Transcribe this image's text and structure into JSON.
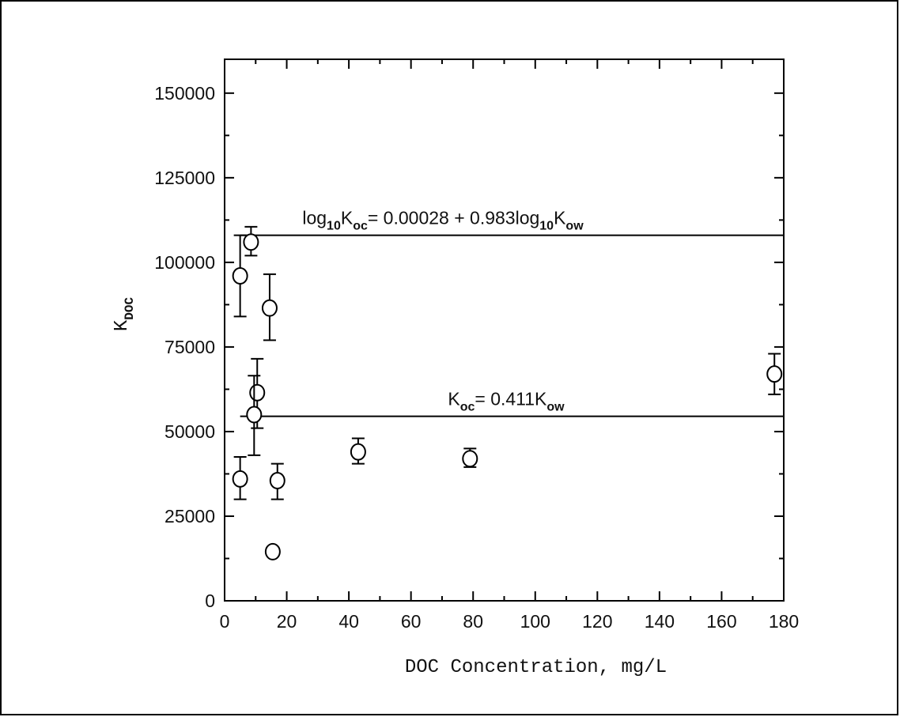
{
  "chart_data": {
    "type": "scatter",
    "xlabel": "DOC Concentration, mg/L",
    "ylabel": {
      "main": "K",
      "sub": "DOC"
    },
    "xlim": [
      0,
      180
    ],
    "ylim": [
      0,
      160000
    ],
    "xticks": [
      0,
      20,
      40,
      60,
      80,
      100,
      120,
      140,
      160,
      180
    ],
    "xtick_labels": [
      "0",
      "20",
      "40",
      "60",
      "80",
      "100",
      "120",
      "140",
      "160",
      "180"
    ],
    "yticks": [
      0,
      25000,
      50000,
      75000,
      100000,
      125000,
      150000
    ],
    "ytick_labels": [
      "0",
      "25000",
      "50000",
      "75000",
      "100000",
      "125000",
      "150000"
    ],
    "points": [
      {
        "x": 5,
        "y": 96000,
        "err_low": 84000,
        "err_high": 108000
      },
      {
        "x": 8.5,
        "y": 106000,
        "err_low": 102000,
        "err_high": 110500
      },
      {
        "x": 14.5,
        "y": 86500,
        "err_low": 77000,
        "err_high": 96500
      },
      {
        "x": 10.5,
        "y": 61500,
        "err_low": 51000,
        "err_high": 71500
      },
      {
        "x": 9.5,
        "y": 55000,
        "err_low": 43000,
        "err_high": 66500
      },
      {
        "x": 5,
        "y": 36000,
        "err_low": 30000,
        "err_high": 42500
      },
      {
        "x": 17,
        "y": 35500,
        "err_low": 30000,
        "err_high": 40500
      },
      {
        "x": 15.5,
        "y": 14500,
        "err_low": null,
        "err_high": null
      },
      {
        "x": 43,
        "y": 44000,
        "err_low": 40500,
        "err_high": 48000
      },
      {
        "x": 79,
        "y": 42000,
        "err_low": 39500,
        "err_high": 45000
      },
      {
        "x": 177,
        "y": 67000,
        "err_low": 61000,
        "err_high": 73000
      }
    ],
    "reference_lines": [
      {
        "y": 108000,
        "x_start": 5,
        "x_end": 180,
        "label_parts": [
          {
            "t": "log",
            "sub": false
          },
          {
            "t": "10",
            "sub": true
          },
          {
            "t": "K",
            "sub": false
          },
          {
            "t": "oc",
            "sub": true
          },
          {
            "t": "= 0.00028 + 0.983log",
            "sub": false
          },
          {
            "t": "10",
            "sub": true
          },
          {
            "t": "K",
            "sub": false
          },
          {
            "t": "ow",
            "sub": true
          }
        ]
      },
      {
        "y": 54500,
        "x_start": 5,
        "x_end": 180,
        "label_parts": [
          {
            "t": "K",
            "sub": false
          },
          {
            "t": "oc",
            "sub": true
          },
          {
            "t": "= 0.411K",
            "sub": false
          },
          {
            "t": "ow",
            "sub": true
          }
        ]
      }
    ],
    "grid": false
  }
}
